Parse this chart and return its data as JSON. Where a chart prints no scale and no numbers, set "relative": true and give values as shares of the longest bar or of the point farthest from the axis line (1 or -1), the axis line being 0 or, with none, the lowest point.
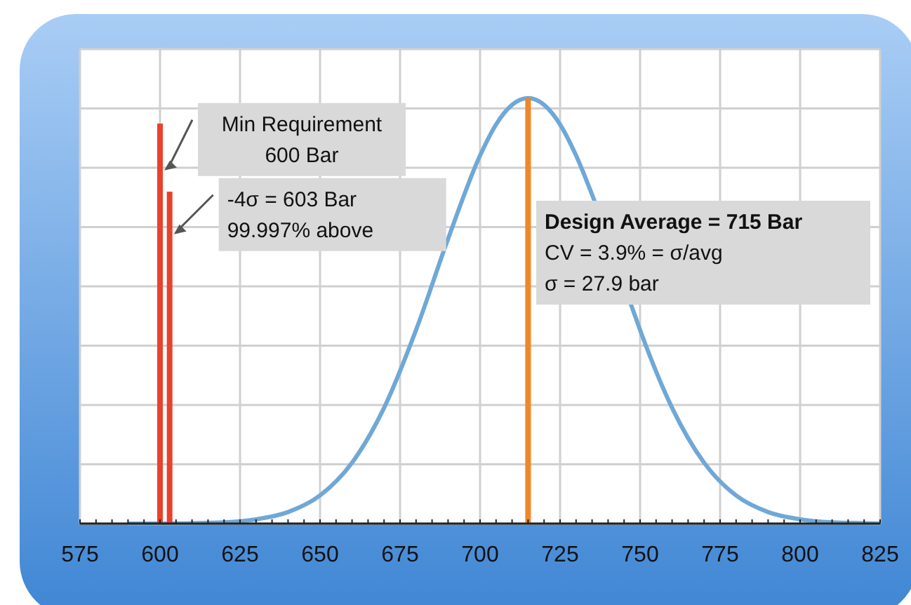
{
  "chart_data": {
    "type": "line",
    "relative": true,
    "xlim": [
      575,
      825
    ],
    "xticks": [
      575,
      600,
      625,
      650,
      675,
      700,
      725,
      750,
      775,
      800,
      825
    ],
    "grid": true,
    "marker": "none",
    "line_style": "solid",
    "series": [
      {
        "color": "#6fa8d6",
        "x": [
          590,
          600,
          610,
          620,
          630,
          640,
          650,
          660,
          670,
          680,
          690,
          700,
          705,
          710,
          715,
          720,
          725,
          730,
          735,
          748,
          750,
          760,
          770,
          780,
          790,
          800,
          810,
          820,
          825
        ],
        "values": [
          0,
          0,
          0.001,
          0.003,
          0.01,
          0.027,
          0.066,
          0.143,
          0.272,
          0.455,
          0.669,
          0.865,
          0.938,
          0.984,
          1,
          0.984,
          0.938,
          0.865,
          0.773,
          0.497,
          0.455,
          0.272,
          0.143,
          0.066,
          0.027,
          0.01,
          0.003,
          0.001,
          0
        ]
      },
      {
        "type": "bar",
        "color": "#e8412c",
        "x": [
          600
        ],
        "values": [
          0.94
        ]
      },
      {
        "type": "bar",
        "color": "#e8412c",
        "x": [
          603
        ],
        "values": [
          0.78
        ]
      },
      {
        "type": "bar",
        "color": "#f0862a",
        "x": [
          715
        ],
        "values": [
          1.0
        ]
      }
    ],
    "annotations": [
      {
        "text": "Min Requirement\n600 Bar",
        "x": 600,
        "y": 0.83
      },
      {
        "text": "-4σ = 603 Bar\n99.997% above",
        "x": 603,
        "y": 0.68
      },
      "Design Average = 715 Bar\nCV = 3.9% = σ/avg\nσ = 27.9 bar"
    ]
  }
}
